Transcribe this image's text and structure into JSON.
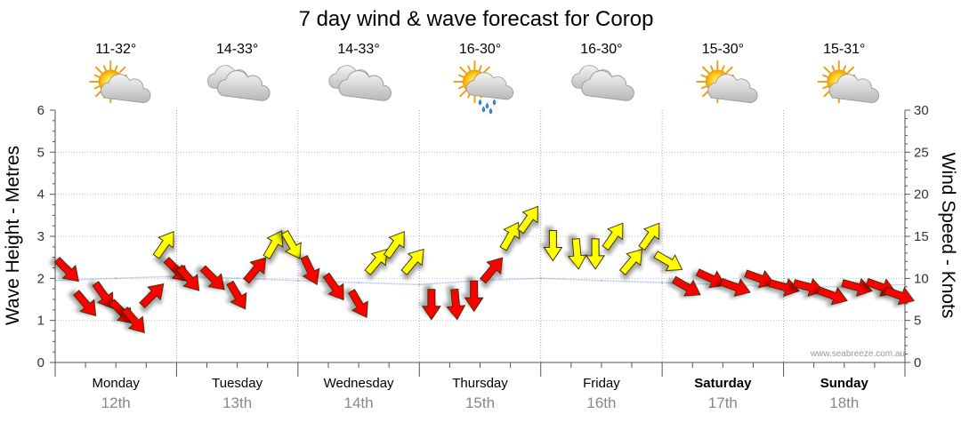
{
  "chart_data": {
    "type": "line",
    "title": "7 day wind & wave forecast for Corop",
    "ylabel_left": "Wave Height - Metres",
    "ylabel_right": "Wind Speed - Knots",
    "ylim_left": [
      0,
      6
    ],
    "ylim_right": [
      0,
      30
    ],
    "yticks_left": [
      "0",
      "1",
      "2",
      "3",
      "4",
      "5",
      "6"
    ],
    "yticks_right": [
      "0",
      "5",
      "10",
      "15",
      "20",
      "25",
      "30"
    ],
    "watermark": "www.seabreeze.com.au",
    "days": [
      {
        "name": "Monday",
        "date": "12th",
        "temp": "11-32°",
        "icon": "sun-cloud-icon",
        "bold": false
      },
      {
        "name": "Tuesday",
        "date": "13th",
        "temp": "14-33°",
        "icon": "cloud-icon",
        "bold": false
      },
      {
        "name": "Wednesday",
        "date": "14th",
        "temp": "14-33°",
        "icon": "cloud-icon",
        "bold": false
      },
      {
        "name": "Thursday",
        "date": "15th",
        "temp": "16-30°",
        "icon": "sun-cloud-rain-icon",
        "bold": false
      },
      {
        "name": "Friday",
        "date": "16th",
        "temp": "16-30°",
        "icon": "cloud-icon",
        "bold": false
      },
      {
        "name": "Saturday",
        "date": "17th",
        "temp": "15-30°",
        "icon": "sun-cloud-icon",
        "bold": true
      },
      {
        "name": "Sunday",
        "date": "18th",
        "temp": "15-31°",
        "icon": "sun-cloud-icon",
        "bold": true
      }
    ],
    "wave_series": {
      "name": "Wave Height",
      "x_days": [
        0.0,
        0.5,
        1.0,
        1.5,
        2.0,
        2.5,
        3.0,
        3.5,
        4.0,
        4.5,
        5.0,
        5.5,
        6.0,
        6.5,
        7.0
      ],
      "values": [
        1.95,
        2.0,
        2.05,
        2.0,
        1.95,
        1.9,
        1.85,
        1.95,
        2.0,
        1.95,
        1.9,
        1.85,
        1.8,
        1.8,
        1.85
      ]
    },
    "wind_series": {
      "name": "Wind Speed (knots)",
      "x_days": [
        0.1,
        0.25,
        0.4,
        0.55,
        0.65,
        0.8,
        0.9,
        1.0,
        1.1,
        1.3,
        1.5,
        1.65,
        1.8,
        1.95,
        2.1,
        2.3,
        2.5,
        2.65,
        2.8,
        2.95,
        3.1,
        3.3,
        3.45,
        3.6,
        3.75,
        3.9,
        4.1,
        4.3,
        4.45,
        4.6,
        4.75,
        4.9,
        5.05,
        5.2,
        5.4,
        5.6,
        5.8,
        6.0,
        6.2,
        6.4,
        6.6,
        6.8,
        6.95
      ],
      "values": [
        11,
        7,
        8,
        6,
        5,
        8,
        14,
        11,
        10,
        10,
        8,
        11,
        14,
        14,
        11,
        9,
        7,
        12,
        14,
        12,
        7,
        7,
        8,
        11,
        15,
        17,
        14,
        13,
        13,
        15,
        12,
        15,
        12,
        9,
        10,
        9,
        10,
        9,
        9,
        8,
        9,
        9,
        8
      ],
      "direction_deg": [
        135,
        140,
        145,
        135,
        140,
        45,
        35,
        135,
        140,
        135,
        150,
        40,
        30,
        150,
        155,
        145,
        150,
        40,
        35,
        40,
        180,
        175,
        180,
        40,
        30,
        35,
        180,
        175,
        180,
        35,
        40,
        35,
        120,
        120,
        115,
        110,
        110,
        105,
        105,
        110,
        105,
        110,
        110
      ]
    }
  }
}
